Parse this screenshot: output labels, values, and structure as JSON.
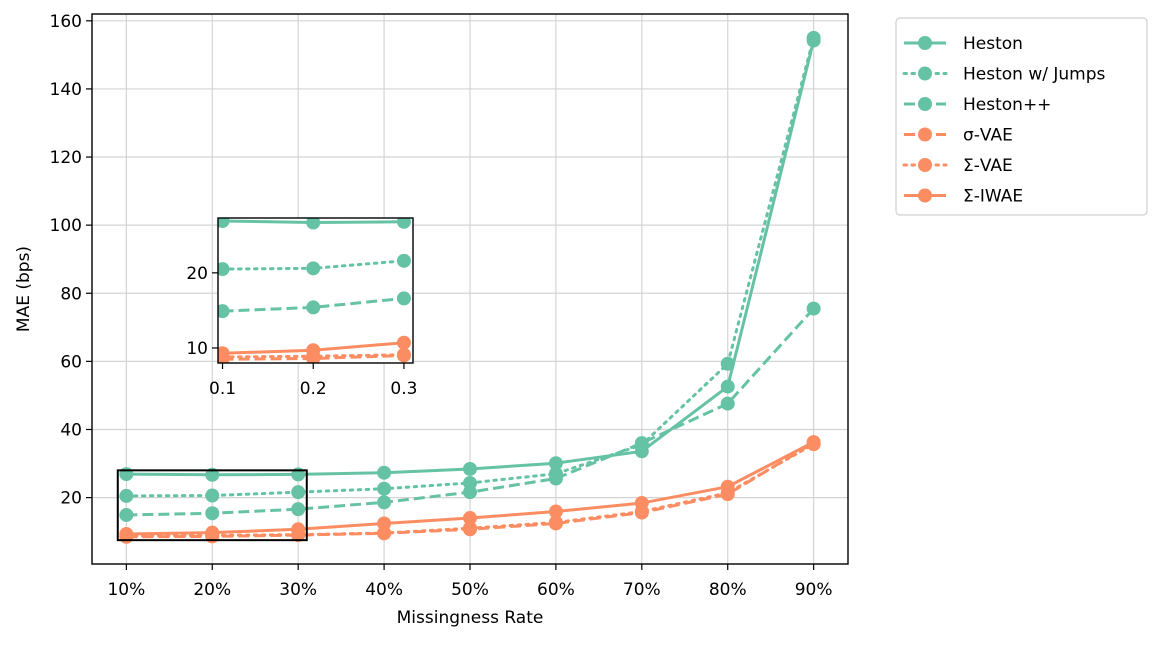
{
  "chart_data": {
    "type": "line",
    "xlabel": "Missingness Rate",
    "ylabel": "MAE (bps)",
    "x": [
      0.1,
      0.2,
      0.3,
      0.4,
      0.5,
      0.6,
      0.7,
      0.8,
      0.9
    ],
    "x_tick_labels": [
      "10%",
      "20%",
      "30%",
      "40%",
      "50%",
      "60%",
      "70%",
      "80%",
      "90%"
    ],
    "y_ticks": [
      20,
      40,
      60,
      80,
      100,
      120,
      140,
      160
    ],
    "xlim": [
      0.06,
      0.94
    ],
    "ylim": [
      0.5,
      162
    ],
    "grid": true,
    "legend_position": "outside-right",
    "series": [
      {
        "name": "Heston",
        "color": "#66c2a5",
        "linestyle": "solid",
        "values": [
          26.9,
          26.7,
          26.8,
          27.3,
          28.4,
          30.1,
          33.6,
          52.6,
          154.2
        ]
      },
      {
        "name": "Heston w/ Jumps",
        "color": "#66c2a5",
        "linestyle": "dotted",
        "values": [
          20.5,
          20.6,
          21.6,
          22.6,
          24.3,
          27.0,
          35.5,
          59.3,
          155.0
        ]
      },
      {
        "name": "Heston++",
        "color": "#66c2a5",
        "linestyle": "dashed",
        "values": [
          14.9,
          15.4,
          16.6,
          18.6,
          21.6,
          25.6,
          36.0,
          47.6,
          75.5
        ]
      },
      {
        "name": "σ-VAE",
        "color": "#fc8d62",
        "linestyle": "dashed",
        "values": [
          8.5,
          8.6,
          9.0,
          9.5,
          10.7,
          12.4,
          15.6,
          21.0,
          36.1
        ]
      },
      {
        "name": "Σ-VAE",
        "color": "#fc8d62",
        "linestyle": "dotted",
        "values": [
          8.8,
          8.9,
          9.1,
          9.6,
          11.0,
          12.7,
          15.9,
          21.4,
          35.7
        ]
      },
      {
        "name": "Σ-IWAE",
        "color": "#fc8d62",
        "linestyle": "solid",
        "values": [
          9.3,
          9.7,
          10.7,
          12.4,
          14.0,
          15.9,
          18.4,
          23.2,
          36.3
        ]
      }
    ],
    "zoom_box": {
      "xlim": [
        0.09,
        0.31
      ],
      "ylim": [
        7.5,
        28
      ]
    },
    "inset": {
      "x": [
        0.1,
        0.2,
        0.3
      ],
      "x_tick_labels": [
        "0.1",
        "0.2",
        "0.3"
      ],
      "y_tick_labels": [
        "10",
        "20"
      ],
      "y_ticks": [
        10,
        20
      ],
      "xlim": [
        0.095,
        0.31
      ],
      "ylim": [
        8.0,
        27.3
      ]
    }
  }
}
